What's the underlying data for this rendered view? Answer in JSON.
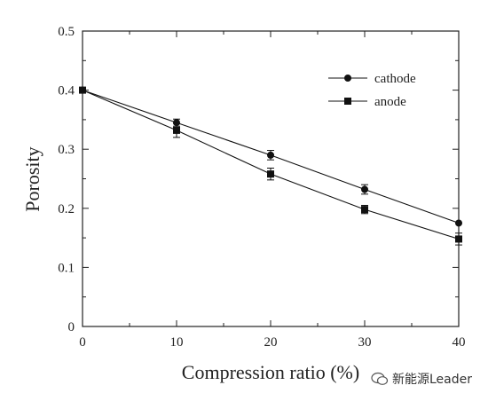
{
  "chart_data": {
    "type": "line",
    "title": "",
    "xlabel": "Compression ratio (%)",
    "ylabel": "Porosity",
    "xlim": [
      0,
      40
    ],
    "ylim": [
      0,
      0.5
    ],
    "xticks": [
      "0",
      "10",
      "20",
      "30",
      "40"
    ],
    "yticks": [
      "0",
      "0.1",
      "0.2",
      "0.3",
      "0.4",
      "0.5"
    ],
    "grid": false,
    "legend_position": "top-right",
    "series": [
      {
        "name": "cathode",
        "marker": "circle",
        "color": "#111111",
        "x": [
          0,
          10,
          20,
          30,
          40
        ],
        "y": [
          0.4,
          0.345,
          0.29,
          0.232,
          0.175
        ],
        "err": [
          0.0,
          0.006,
          0.008,
          0.008,
          0.0
        ]
      },
      {
        "name": "anode",
        "marker": "square",
        "color": "#111111",
        "x": [
          0,
          10,
          20,
          30,
          40
        ],
        "y": [
          0.4,
          0.332,
          0.258,
          0.198,
          0.148
        ],
        "err": [
          0.0,
          0.012,
          0.01,
          0.007,
          0.01
        ]
      }
    ]
  },
  "watermark": {
    "text": "新能源Leader",
    "icon": "wechat-icon"
  }
}
